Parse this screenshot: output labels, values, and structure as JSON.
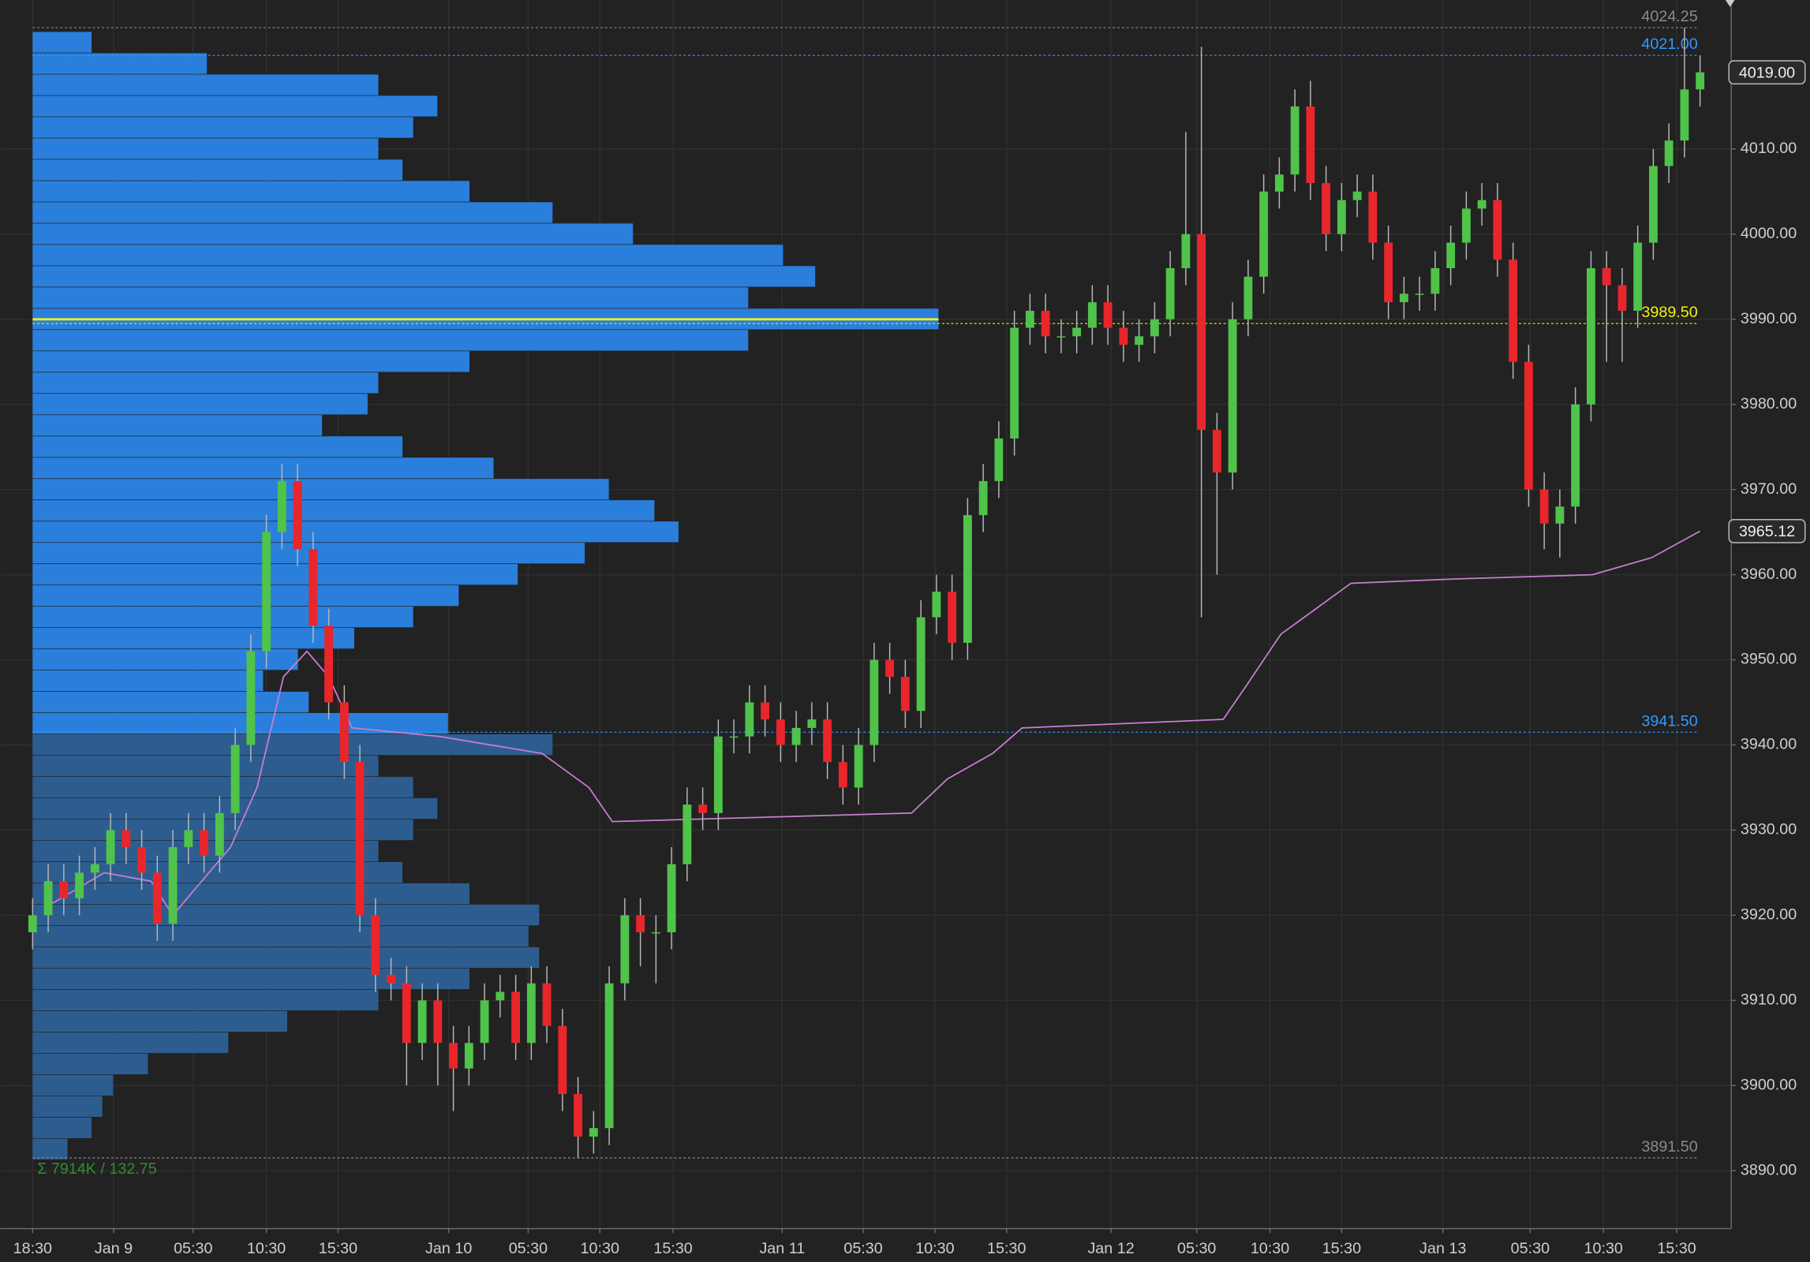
{
  "chart_data": {
    "type": "candlestick",
    "xlim": [
      0,
      109
    ],
    "xticks": [
      {
        "value": 0,
        "label": "18:30"
      },
      {
        "value": 5.2,
        "label": "Jan 9"
      },
      {
        "value": 10.3,
        "label": "05:30"
      },
      {
        "value": 15.0,
        "label": "10:30"
      },
      {
        "value": 19.6,
        "label": "15:30"
      },
      {
        "value": 26.7,
        "label": "Jan 10"
      },
      {
        "value": 31.8,
        "label": "05:30"
      },
      {
        "value": 36.4,
        "label": "10:30"
      },
      {
        "value": 41.1,
        "label": "15:30"
      },
      {
        "value": 48.1,
        "label": "Jan 11"
      },
      {
        "value": 53.3,
        "label": "05:30"
      },
      {
        "value": 57.9,
        "label": "10:30"
      },
      {
        "value": 62.5,
        "label": "15:30"
      },
      {
        "value": 69.2,
        "label": "Jan 12"
      },
      {
        "value": 74.7,
        "label": "05:30"
      },
      {
        "value": 79.4,
        "label": "10:30"
      },
      {
        "value": 84.0,
        "label": "15:30"
      },
      {
        "value": 90.5,
        "label": "Jan 13"
      },
      {
        "value": 96.1,
        "label": "05:30"
      },
      {
        "value": 100.8,
        "label": "10:30"
      },
      {
        "value": 105.5,
        "label": "15:30"
      }
    ],
    "ylim": [
      3883.2,
      4027.5
    ],
    "yticks": [
      {
        "value": 3890,
        "label": "3890.00"
      },
      {
        "value": 3900,
        "label": "3900.00"
      },
      {
        "value": 3910,
        "label": "3910.00"
      },
      {
        "value": 3920,
        "label": "3920.00"
      },
      {
        "value": 3930,
        "label": "3930.00"
      },
      {
        "value": 3940,
        "label": "3940.00"
      },
      {
        "value": 3950,
        "label": "3950.00"
      },
      {
        "value": 3960,
        "label": "3960.00"
      },
      {
        "value": 3970,
        "label": "3970.00"
      },
      {
        "value": 3980,
        "label": "3980.00"
      },
      {
        "value": 3990,
        "label": "3990.00"
      },
      {
        "value": 4000,
        "label": "4000.00"
      },
      {
        "value": 4010,
        "label": "4010.00"
      }
    ],
    "grid": true,
    "up_color": "#4fc34a",
    "down_color": "#e8262b",
    "open": [
      3918,
      3920,
      3924,
      3922,
      3925,
      3926,
      3930,
      3928,
      3925,
      3919,
      3928,
      3930,
      3927,
      3932,
      3940,
      3951,
      3965,
      3971,
      3963,
      3954,
      3945,
      3938,
      3920,
      3913,
      3912,
      3905,
      3910,
      3905,
      3902,
      3905,
      3910,
      3911,
      3905,
      3912,
      3907,
      3899,
      3894,
      3895,
      3912,
      3920,
      3918,
      3918,
      3926,
      3933,
      3932,
      3941,
      3941,
      3945,
      3943,
      3940,
      3942,
      3943,
      3938,
      3935,
      3940,
      3950,
      3948,
      3944,
      3955,
      3958,
      3952,
      3967,
      3971,
      3976,
      3989,
      3991,
      3988,
      3988,
      3989,
      3992,
      3989,
      3987,
      3988,
      3990,
      3996,
      4000,
      3977,
      3972,
      3990,
      3995,
      4005,
      4007,
      4015,
      4006,
      4000,
      4004,
      4005,
      3999,
      3992,
      3993,
      3993,
      3996,
      3999,
      4003,
      4004,
      3997,
      3985,
      3970,
      3966,
      3968,
      3980,
      3996,
      3994,
      3991,
      3999,
      4008,
      4011,
      4017
    ],
    "high": [
      3922,
      3926,
      3926,
      3927,
      3928,
      3932,
      3932,
      3930,
      3927,
      3930,
      3932,
      3932,
      3934,
      3942,
      3953,
      3967,
      3973,
      3973,
      3965,
      3956,
      3947,
      3940,
      3922,
      3915,
      3914,
      3912,
      3912,
      3907,
      3907,
      3912,
      3913,
      3913,
      3914,
      3914,
      3909,
      3901,
      3897,
      3914,
      3922,
      3922,
      3920,
      3928,
      3935,
      3935,
      3943,
      3943,
      3947,
      3947,
      3945,
      3944,
      3945,
      3945,
      3940,
      3942,
      3952,
      3952,
      3950,
      3957,
      3960,
      3960,
      3969,
      3973,
      3978,
      3991,
      3993,
      3993,
      3990,
      3991,
      3994,
      3994,
      3991,
      3990,
      3992,
      3998,
      4012,
      4022,
      3979,
      3992,
      3997,
      4007,
      4009,
      4017,
      4018,
      4008,
      4006,
      4007,
      4007,
      4001,
      3995,
      3995,
      3998,
      4001,
      4005,
      4006,
      4006,
      3999,
      3987,
      3972,
      3970,
      3982,
      3998,
      3998,
      3996,
      4001,
      4010,
      4013,
      4024.25,
      4021
    ],
    "low": [
      3916,
      3918,
      3920,
      3920,
      3923,
      3924,
      3926,
      3923,
      3917,
      3917,
      3926,
      3925,
      3925,
      3930,
      3938,
      3949,
      3963,
      3961,
      3952,
      3943,
      3936,
      3918,
      3911,
      3910,
      3900,
      3903,
      3900,
      3897,
      3900,
      3903,
      3908,
      3903,
      3903,
      3905,
      3897,
      3891.5,
      3892,
      3893,
      3910,
      3914,
      3912,
      3916,
      3924,
      3930,
      3930,
      3939,
      3939,
      3941,
      3938,
      3938,
      3940,
      3936,
      3933,
      3933,
      3938,
      3946,
      3942,
      3942,
      3953,
      3950,
      3950,
      3965,
      3969,
      3974,
      3987,
      3986,
      3986,
      3986,
      3987,
      3987,
      3985,
      3985,
      3986,
      3988,
      3994,
      3955,
      3960,
      3970,
      3988,
      3993,
      4003,
      4005,
      4004,
      3998,
      3998,
      4002,
      3997,
      3990,
      3990,
      3991,
      3991,
      3994,
      3997,
      4001,
      3995,
      3983,
      3968,
      3963,
      3962,
      3966,
      3978,
      3985,
      3985,
      3989,
      3997,
      4006,
      4009,
      4015
    ],
    "close": [
      3920,
      3924,
      3922,
      3925,
      3926,
      3930,
      3928,
      3925,
      3919,
      3928,
      3930,
      3927,
      3932,
      3940,
      3951,
      3965,
      3971,
      3963,
      3954,
      3945,
      3938,
      3920,
      3913,
      3912,
      3905,
      3910,
      3905,
      3902,
      3905,
      3910,
      3911,
      3905,
      3912,
      3907,
      3899,
      3894,
      3895,
      3912,
      3920,
      3918,
      3918,
      3926,
      3933,
      3932,
      3941,
      3941,
      3945,
      3943,
      3940,
      3942,
      3943,
      3938,
      3935,
      3940,
      3950,
      3948,
      3944,
      3955,
      3958,
      3952,
      3967,
      3971,
      3976,
      3989,
      3991,
      3988,
      3988,
      3989,
      3992,
      3989,
      3987,
      3988,
      3990,
      3996,
      4000,
      3977,
      3972,
      3990,
      3995,
      4005,
      4007,
      4015,
      4006,
      4000,
      4004,
      4005,
      3999,
      3992,
      3993,
      3993,
      3996,
      3999,
      4003,
      4004,
      3997,
      3985,
      3970,
      3966,
      3968,
      3980,
      3996,
      3994,
      3991,
      3999,
      4008,
      4011,
      4017,
      4019
    ],
    "vwap": {
      "color": "#c77fd0",
      "x": [
        0.9,
        4.6,
        7.6,
        9,
        12.7,
        14.4,
        16.1,
        17.6,
        19,
        20.5,
        26.1,
        32.7,
        35.7,
        37.2,
        56.4,
        58.7,
        61.6,
        63.5,
        76.4,
        77.9,
        80.1,
        84.6,
        91.3,
        100.1,
        103.9,
        107
      ],
      "values": [
        3921,
        3925,
        3924,
        3920,
        3928,
        3935,
        3948,
        3951,
        3948,
        3942,
        3941,
        3939,
        3935,
        3931,
        3932,
        3936,
        3939,
        3942,
        3943,
        3947,
        3953,
        3959,
        3959.5,
        3960,
        3962,
        3965.12
      ]
    },
    "profile": {
      "color": "#2d5d8f",
      "value_area_color": "#2a7fdc",
      "value_area_low": 3941.5,
      "poc_color": "#f2f20a",
      "prices": [
        4022.5,
        4020,
        4017.5,
        4015,
        4012.5,
        4010,
        4007.5,
        4005,
        4002.5,
        4000,
        3997.5,
        3995,
        3992.5,
        3990,
        3987.5,
        3985,
        3982.5,
        3980,
        3977.5,
        3975,
        3972.5,
        3970,
        3967.5,
        3965,
        3962.5,
        3960,
        3957.5,
        3955,
        3952.5,
        3950,
        3947.5,
        3945,
        3942.5,
        3940,
        3937.5,
        3935,
        3932.5,
        3930,
        3927.5,
        3925,
        3922.5,
        3920,
        3917.5,
        3915,
        3912.5,
        3910,
        3907.5,
        3905,
        3902.5,
        3900,
        3897.5,
        3895,
        3892.5
      ],
      "volumes": [
        22,
        65,
        129,
        151,
        142,
        129,
        138,
        163,
        194,
        224,
        280,
        292,
        267,
        338,
        267,
        163,
        129,
        125,
        108,
        138,
        172,
        215,
        232,
        241,
        206,
        181,
        159,
        142,
        120,
        99,
        86,
        103,
        155,
        194,
        129,
        142,
        151,
        142,
        129,
        138,
        163,
        189,
        185,
        189,
        163,
        129,
        95,
        73,
        43,
        30,
        26,
        22,
        13
      ],
      "summary": "Σ 7914K / 132.75"
    },
    "levels": [
      {
        "value": 4024.25,
        "label": "4024.25",
        "color": "#8a8a8a"
      },
      {
        "value": 4021.0,
        "label": "4021.00",
        "color": "#3399ff"
      },
      {
        "value": 3989.5,
        "label": "3989.50",
        "color": "#f2f20a"
      },
      {
        "value": 3941.5,
        "label": "3941.50",
        "color": "#3399ff"
      },
      {
        "value": 3891.5,
        "label": "3891.50",
        "color": "#8a8a8a"
      }
    ],
    "price_tags": [
      {
        "value": 4019.0,
        "label": "4019.00"
      },
      3965.12
    ]
  }
}
